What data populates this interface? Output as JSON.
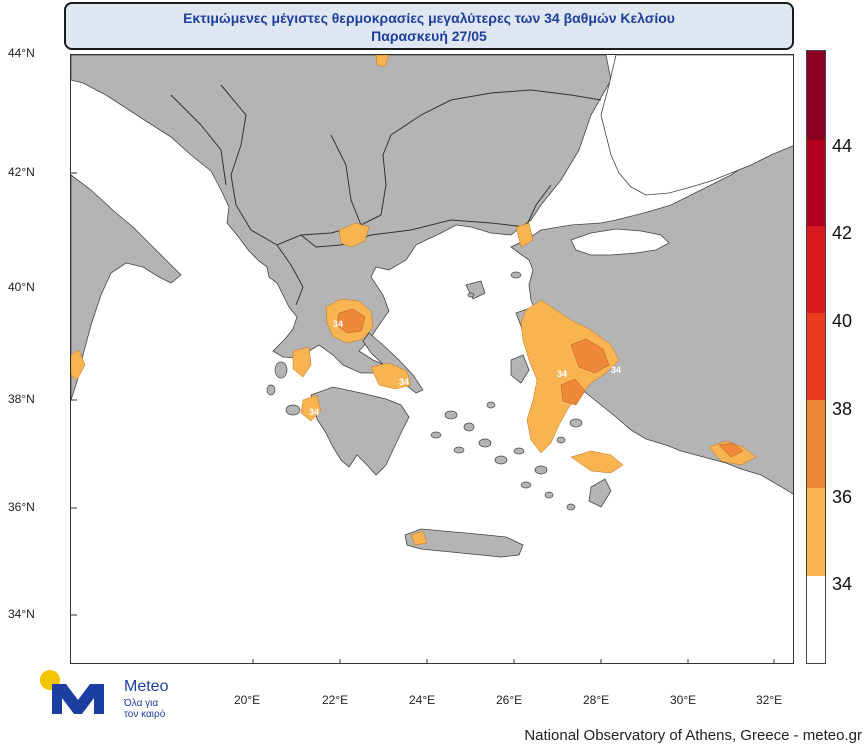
{
  "header": {
    "title_line1": "Εκτιμώμενες μέγιστες θερμοκρασίες μεγαλύτερες των 34 βαθμών Κελσίου",
    "title_line2": "Παρασκευή 27/05"
  },
  "axes": {
    "lat_labels": [
      "44°N",
      "42°N",
      "40°N",
      "38°N",
      "36°N",
      "34°N"
    ],
    "lon_labels": [
      "20°E",
      "22°E",
      "24°E",
      "26°E",
      "28°E",
      "30°E",
      "32°E"
    ]
  },
  "colorbar": {
    "labels": [
      "44",
      "42",
      "40",
      "38",
      "36",
      "34"
    ],
    "colors": [
      "#8b0020",
      "#b3001f",
      "#d7191c",
      "#ea3b20",
      "#f0772a",
      "#f4943a",
      "#f7b451",
      "#ffffff"
    ]
  },
  "contour_labels": [
    "34",
    "34",
    "34",
    "34",
    "34",
    "34"
  ],
  "logo": {
    "name": "Meteo",
    "tagline_line1": "Όλα για",
    "tagline_line2": "τον καιρό"
  },
  "footer": "National Observatory of Athens, Greece - meteo.gr",
  "colors": {
    "land": "#b4b4b4",
    "sea": "#ffffff",
    "hot_34": "#f7b451",
    "hot_36": "#f0883a",
    "title_text": "#1f3f9c"
  }
}
